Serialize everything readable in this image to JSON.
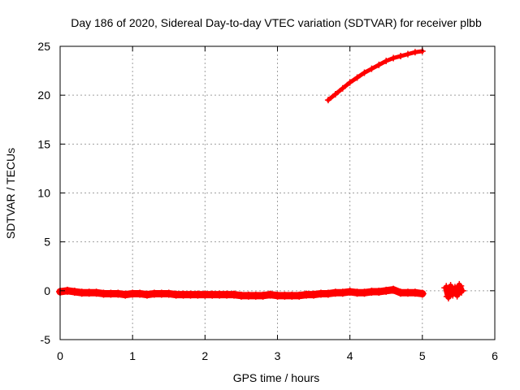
{
  "chart_data": {
    "type": "scatter",
    "title": "Day 186 of 2020, Sidereal Day-to-day VTEC variation (SDTVAR) for receiver plbb",
    "xlabel": "GPS time / hours",
    "ylabel": "SDTVAR / TECUs",
    "xlim": [
      0,
      6
    ],
    "ylim": [
      -5,
      25
    ],
    "xticks": [
      0,
      1,
      2,
      3,
      4,
      5,
      6
    ],
    "xtick_labels": [
      "0",
      "1",
      "2",
      "3",
      "4",
      "5",
      "6"
    ],
    "yticks": [
      -5,
      0,
      5,
      10,
      15,
      20,
      25
    ],
    "ytick_labels": [
      "-5",
      "0",
      "5",
      "10",
      "15",
      "20",
      "25"
    ],
    "grid": true,
    "marker": "plus",
    "colors": {
      "series": "#ff0000",
      "grid": "#a0a0a0",
      "axis": "#000000"
    },
    "series": [
      {
        "name": "main-band",
        "x": [
          0.0,
          0.1,
          0.2,
          0.3,
          0.4,
          0.5,
          0.6,
          0.7,
          0.8,
          0.9,
          1.0,
          1.1,
          1.2,
          1.3,
          1.4,
          1.5,
          1.6,
          1.7,
          1.8,
          1.9,
          2.0,
          2.1,
          2.2,
          2.3,
          2.4,
          2.5,
          2.6,
          2.7,
          2.8,
          2.9,
          3.0,
          3.1,
          3.2,
          3.3,
          3.4,
          3.5,
          3.6,
          3.7,
          3.8,
          3.9,
          4.0,
          4.1,
          4.2,
          4.3,
          4.4,
          4.5,
          4.6,
          4.7,
          4.8,
          4.9,
          5.0
        ],
        "y": [
          -0.1,
          0.0,
          -0.1,
          -0.2,
          -0.2,
          -0.2,
          -0.3,
          -0.3,
          -0.3,
          -0.4,
          -0.3,
          -0.3,
          -0.4,
          -0.3,
          -0.3,
          -0.3,
          -0.4,
          -0.4,
          -0.4,
          -0.4,
          -0.4,
          -0.4,
          -0.4,
          -0.4,
          -0.4,
          -0.5,
          -0.5,
          -0.5,
          -0.5,
          -0.4,
          -0.5,
          -0.5,
          -0.5,
          -0.5,
          -0.4,
          -0.4,
          -0.3,
          -0.3,
          -0.2,
          -0.2,
          -0.1,
          -0.2,
          -0.2,
          -0.1,
          -0.1,
          0.0,
          0.1,
          -0.2,
          -0.2,
          -0.2,
          -0.3
        ]
      },
      {
        "name": "rising-arc",
        "x": [
          3.7,
          3.8,
          3.9,
          4.0,
          4.1,
          4.2,
          4.3,
          4.4,
          4.5,
          4.6,
          4.7,
          4.8,
          4.9,
          5.0
        ],
        "y": [
          19.5,
          20.1,
          20.7,
          21.3,
          21.8,
          22.3,
          22.7,
          23.1,
          23.5,
          23.8,
          24.0,
          24.2,
          24.4,
          24.5
        ]
      },
      {
        "name": "late-cluster",
        "x": [
          5.33,
          5.36,
          5.39,
          5.42,
          5.45,
          5.48,
          5.51,
          5.54
        ],
        "y": [
          0.3,
          -0.6,
          0.4,
          -0.3,
          0.2,
          -0.4,
          0.5,
          0.0
        ]
      }
    ]
  }
}
